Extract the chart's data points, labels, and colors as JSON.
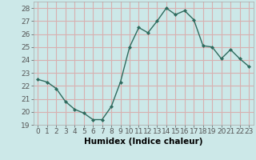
{
  "xlabel": "Humidex (Indice chaleur)",
  "x": [
    0,
    1,
    2,
    3,
    4,
    5,
    6,
    7,
    8,
    9,
    10,
    11,
    12,
    13,
    14,
    15,
    16,
    17,
    18,
    19,
    20,
    21,
    22,
    23
  ],
  "y": [
    22.5,
    22.3,
    21.8,
    20.8,
    20.2,
    19.9,
    19.4,
    19.4,
    20.4,
    22.3,
    25.0,
    26.5,
    26.1,
    27.0,
    28.0,
    27.5,
    27.8,
    27.1,
    25.1,
    25.0,
    24.1,
    24.8,
    24.1,
    23.5
  ],
  "line_color": "#2e6b5e",
  "marker": "D",
  "marker_size": 2,
  "linewidth": 1.0,
  "xlim": [
    -0.5,
    23.5
  ],
  "ylim": [
    19,
    28.5
  ],
  "yticks": [
    19,
    20,
    21,
    22,
    23,
    24,
    25,
    26,
    27,
    28
  ],
  "xticks": [
    0,
    1,
    2,
    3,
    4,
    5,
    6,
    7,
    8,
    9,
    10,
    11,
    12,
    13,
    14,
    15,
    16,
    17,
    18,
    19,
    20,
    21,
    22,
    23
  ],
  "bg_color": "#cce8e8",
  "grid_color": "#d8b0b0",
  "tick_color": "#555555",
  "font_size": 6.5
}
